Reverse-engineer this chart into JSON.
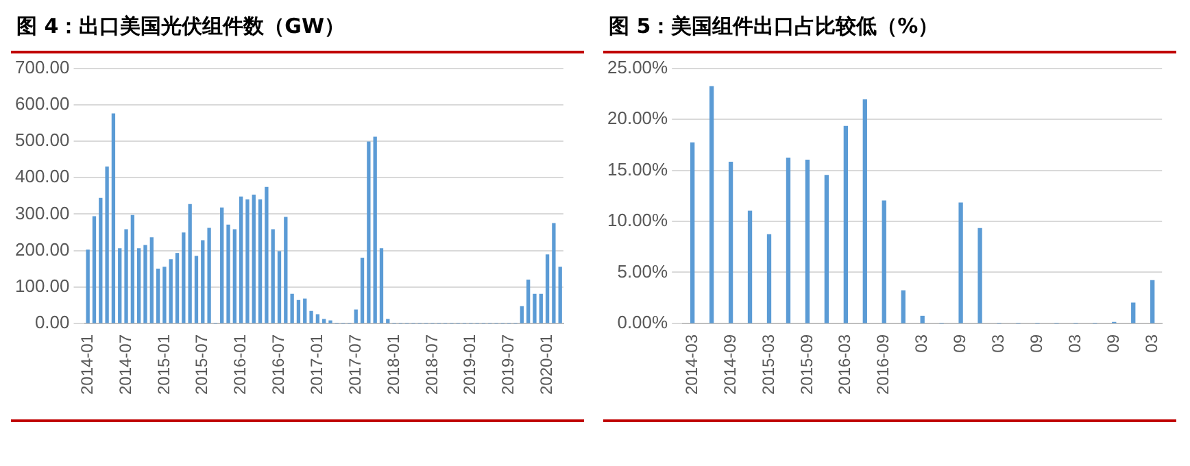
{
  "chart_data": [
    {
      "type": "bar",
      "title": "图 4：出口美国光伏组件数（GW）",
      "categories": [
        "2014-01",
        null,
        null,
        null,
        null,
        null,
        "2014-07",
        null,
        null,
        null,
        null,
        null,
        "2015-01",
        null,
        null,
        null,
        null,
        null,
        "2015-07",
        null,
        null,
        null,
        null,
        null,
        "2016-01",
        null,
        null,
        null,
        null,
        null,
        "2016-07",
        null,
        null,
        null,
        null,
        null,
        "2017-01",
        null,
        null,
        null,
        null,
        null,
        "2017-07",
        null,
        null,
        null,
        null,
        null,
        "2018-01",
        null,
        null,
        null,
        null,
        null,
        "2018-07",
        null,
        null,
        null,
        null,
        null,
        "2019-01",
        null,
        null,
        null,
        null,
        null,
        "2019-07",
        null,
        null,
        null,
        null,
        null,
        "2020-01",
        null,
        null
      ],
      "values": [
        201,
        293,
        343,
        429,
        575,
        205,
        257,
        296,
        205,
        214,
        235,
        149,
        154,
        175,
        192,
        248,
        326,
        184,
        227,
        261,
        0,
        317,
        270,
        257,
        347,
        339,
        352,
        339,
        373,
        257,
        197,
        291,
        80,
        63,
        67,
        33,
        24,
        11,
        7,
        0,
        0,
        0,
        37,
        179,
        498,
        511,
        205,
        11,
        0,
        0,
        0,
        0,
        0,
        0,
        0,
        0,
        0,
        0,
        0,
        0,
        0,
        0,
        0,
        0,
        0,
        0,
        0,
        0,
        46,
        119,
        80,
        80,
        188,
        274,
        154
      ],
      "color": "#5b9bd5",
      "ylim": [
        0,
        700
      ],
      "yticks": [
        {
          "value": 0,
          "label": "0.00"
        },
        {
          "value": 100,
          "label": "100.00"
        },
        {
          "value": 200,
          "label": "200.00"
        },
        {
          "value": 300,
          "label": "300.00"
        },
        {
          "value": 400,
          "label": "400.00"
        },
        {
          "value": 500,
          "label": "500.00"
        },
        {
          "value": 600,
          "label": "600.00"
        },
        {
          "value": 700,
          "label": "700.00"
        }
      ],
      "grid": "y",
      "legend": false
    },
    {
      "type": "bar",
      "title": "图 5：美国组件出口占比较低（%）",
      "categories": [
        "2014-03",
        null,
        "2014-09",
        null,
        "2015-03",
        null,
        "2015-09",
        null,
        "2016-03",
        null,
        "2016-09",
        null,
        "03",
        null,
        "09",
        null,
        "03",
        null,
        "09",
        null,
        "03",
        null,
        "09",
        null,
        "03"
      ],
      "values": [
        17.7,
        23.2,
        15.8,
        11.0,
        8.7,
        16.2,
        16.0,
        14.5,
        19.3,
        21.9,
        12.0,
        3.2,
        0.7,
        0,
        11.8,
        9.3,
        0,
        0,
        0,
        0,
        0,
        0,
        0.1,
        2.0,
        4.2
      ],
      "color": "#5b9bd5",
      "ylim": [
        0,
        25
      ],
      "yticks": [
        {
          "value": 0,
          "label": "0.00%"
        },
        {
          "value": 5,
          "label": "5.00%"
        },
        {
          "value": 10,
          "label": "10.00%"
        },
        {
          "value": 15,
          "label": "15.00%"
        },
        {
          "value": 20,
          "label": "20.00%"
        },
        {
          "value": 25,
          "label": "25.00%"
        }
      ],
      "grid": "y",
      "legend": false
    }
  ]
}
